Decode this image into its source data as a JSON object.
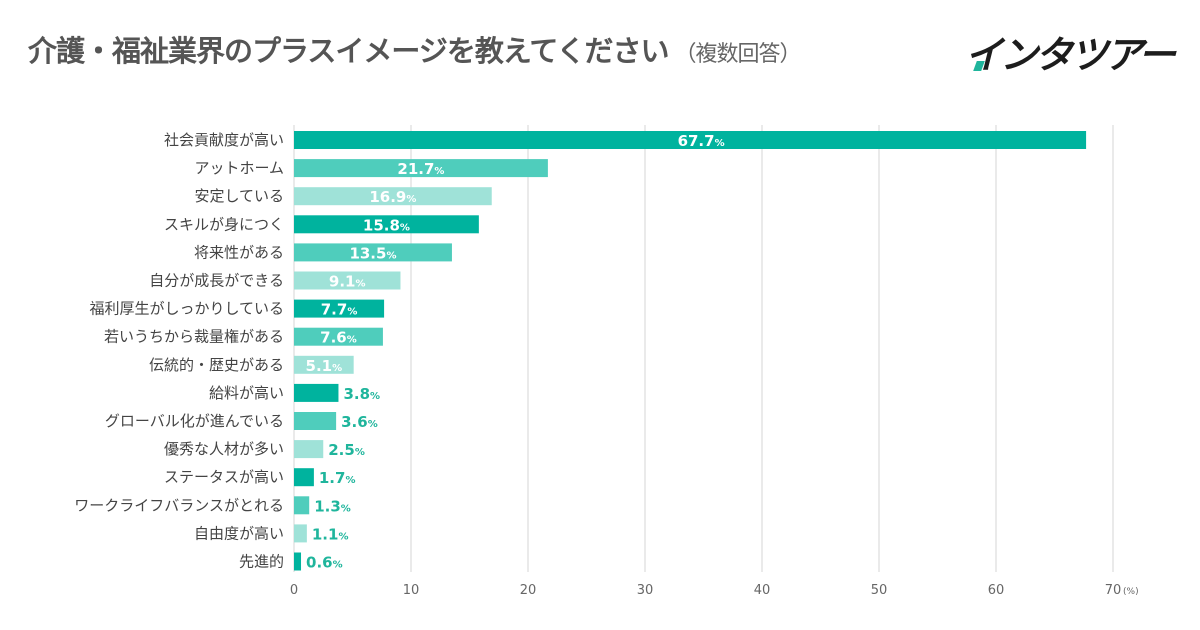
{
  "title": "介護・福祉業界のプラスイメージを教えてください",
  "subtitle": "（複数回答）",
  "logo_text": "インタツアー",
  "colors": {
    "dark": "#00b39e",
    "mid": "#4fcdbc",
    "light": "#9fe2d8",
    "outside_label": "#1fb59c"
  },
  "chart_data": {
    "type": "bar",
    "orientation": "horizontal",
    "categories": [
      "社会貢献度が高い",
      "アットホーム",
      "安定している",
      "スキルが身につく",
      "将来性がある",
      "自分が成長ができる",
      "福利厚生がしっかりしている",
      "若いうちから裁量権がある",
      "伝統的・歴史がある",
      "給料が高い",
      "グローバル化が進んでいる",
      "優秀な人材が多い",
      "ステータスが高い",
      "ワークライフバランスがとれる",
      "自由度が高い",
      "先進的"
    ],
    "values": [
      67.7,
      21.7,
      16.9,
      15.8,
      13.5,
      9.1,
      7.7,
      7.6,
      5.1,
      3.8,
      3.6,
      2.5,
      1.7,
      1.3,
      1.1,
      0.6
    ],
    "value_suffix": "%",
    "xlim": [
      0,
      70
    ],
    "xticks": [
      "0",
      "10",
      "20",
      "30",
      "40",
      "50",
      "60",
      "70"
    ],
    "xunit": "(%)",
    "grid": true
  }
}
